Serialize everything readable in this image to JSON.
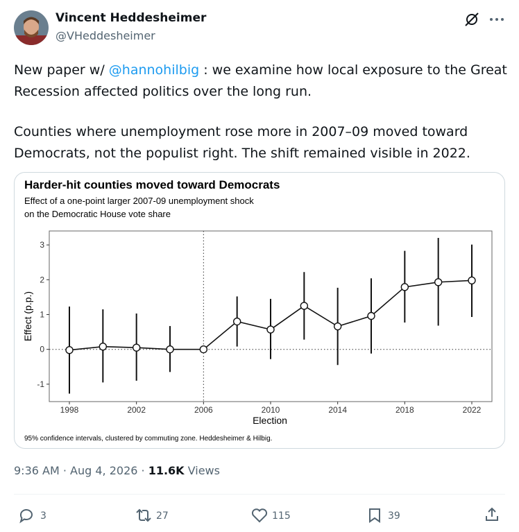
{
  "tweet": {
    "name": "Vincent Heddesheimer",
    "handle": "@VHeddesheimer",
    "paragraph_1": {
      "before": "New paper w/ ",
      "mention": "@hannohilbig",
      "after": " : we examine how local exposure to the Great Recession affected politics over the long run."
    },
    "paragraph_2": "Counties where unemployment rose more in 2007–09 moved toward Democrats, not the populist right. The shift remained visible in 2022.",
    "timestamp": "9:36 AM · Aug 4, 2026 ·",
    "views_count": "11.6K",
    "views_label": "Views",
    "replies": 3,
    "reposts": 27,
    "likes": 115,
    "bookmarks": 39
  },
  "chart_data": {
    "type": "line",
    "title": "Harder-hit counties moved toward Democrats",
    "subtitle": [
      "Effect of a one-point larger 2007-09 unemployment shock",
      "on the Democratic House vote share"
    ],
    "xlabel": "Election",
    "ylabel": "Effect (p.p.)",
    "footnote": "95% confidence intervals, clustered by commuting zone. Heddesheimer & Hilbig.",
    "x": [
      1998,
      2000,
      2002,
      2004,
      2006,
      2008,
      2010,
      2012,
      2014,
      2016,
      2018,
      2020,
      2022
    ],
    "values": [
      -0.02,
      0.08,
      0.05,
      0.0,
      0.0,
      0.8,
      0.57,
      1.25,
      0.66,
      0.96,
      1.79,
      1.93,
      1.98
    ],
    "ci_low": [
      -1.27,
      -0.95,
      -0.9,
      -0.65,
      null,
      0.08,
      -0.28,
      0.28,
      -0.45,
      -0.12,
      0.77,
      0.68,
      0.93
    ],
    "ci_high": [
      1.23,
      1.15,
      1.03,
      0.67,
      null,
      1.52,
      1.45,
      2.22,
      1.77,
      2.04,
      2.83,
      3.2,
      3.01
    ],
    "color": "#111111",
    "xlim": [
      1996.8,
      2023.2
    ],
    "ylim": [
      -1.5,
      3.4
    ],
    "xticks": [
      1998,
      2002,
      2006,
      2010,
      2014,
      2018,
      2022
    ],
    "yticks": [
      -1,
      0,
      1,
      2,
      3
    ],
    "vline": 2006,
    "hline": 0
  }
}
